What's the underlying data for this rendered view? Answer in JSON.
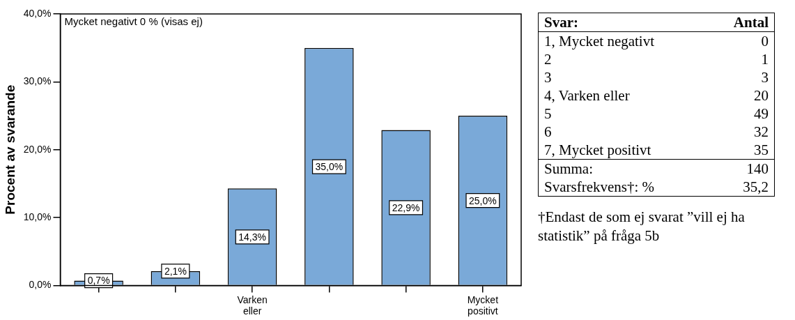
{
  "chart_data": [
    {
      "type": "bar",
      "ylabel": "Procent av svarande",
      "categories": [
        null,
        null,
        "Varken eller",
        null,
        null,
        "Mycket positivt"
      ],
      "values": [
        0.7,
        2.1,
        14.3,
        35.0,
        22.9,
        25.0
      ],
      "value_labels": [
        "0,7%",
        "2,1%",
        "14,3%",
        "35,0%",
        "22,9%",
        "25,0%"
      ],
      "color": "#7aa9d8",
      "ylim": [
        0,
        40
      ],
      "yticks": [
        {
          "value": 0,
          "label": "0,0%"
        },
        {
          "value": 10,
          "label": "10,0%"
        },
        {
          "value": 20,
          "label": "20,0%"
        },
        {
          "value": 30,
          "label": "30,0%"
        },
        {
          "value": 40,
          "label": "40,0%"
        }
      ],
      "grid": false,
      "legend": false,
      "annotations": [
        "Mycket negativt 0 % (visas ej)"
      ]
    },
    {
      "type": "other",
      "annotations": [
        "Svar:",
        "Antal",
        "1, Mycket negativt",
        "0",
        "2",
        "1",
        "3",
        "3",
        "4, Varken eller",
        "20",
        "5",
        "49",
        "6",
        "32",
        "7, Mycket positivt",
        "35",
        "Summa:",
        "140",
        "Svarsfrekvens†: %",
        "35,2",
        "†Endast de som ej svarat ”vill ej ha statistik” på fråga 5b"
      ]
    }
  ]
}
